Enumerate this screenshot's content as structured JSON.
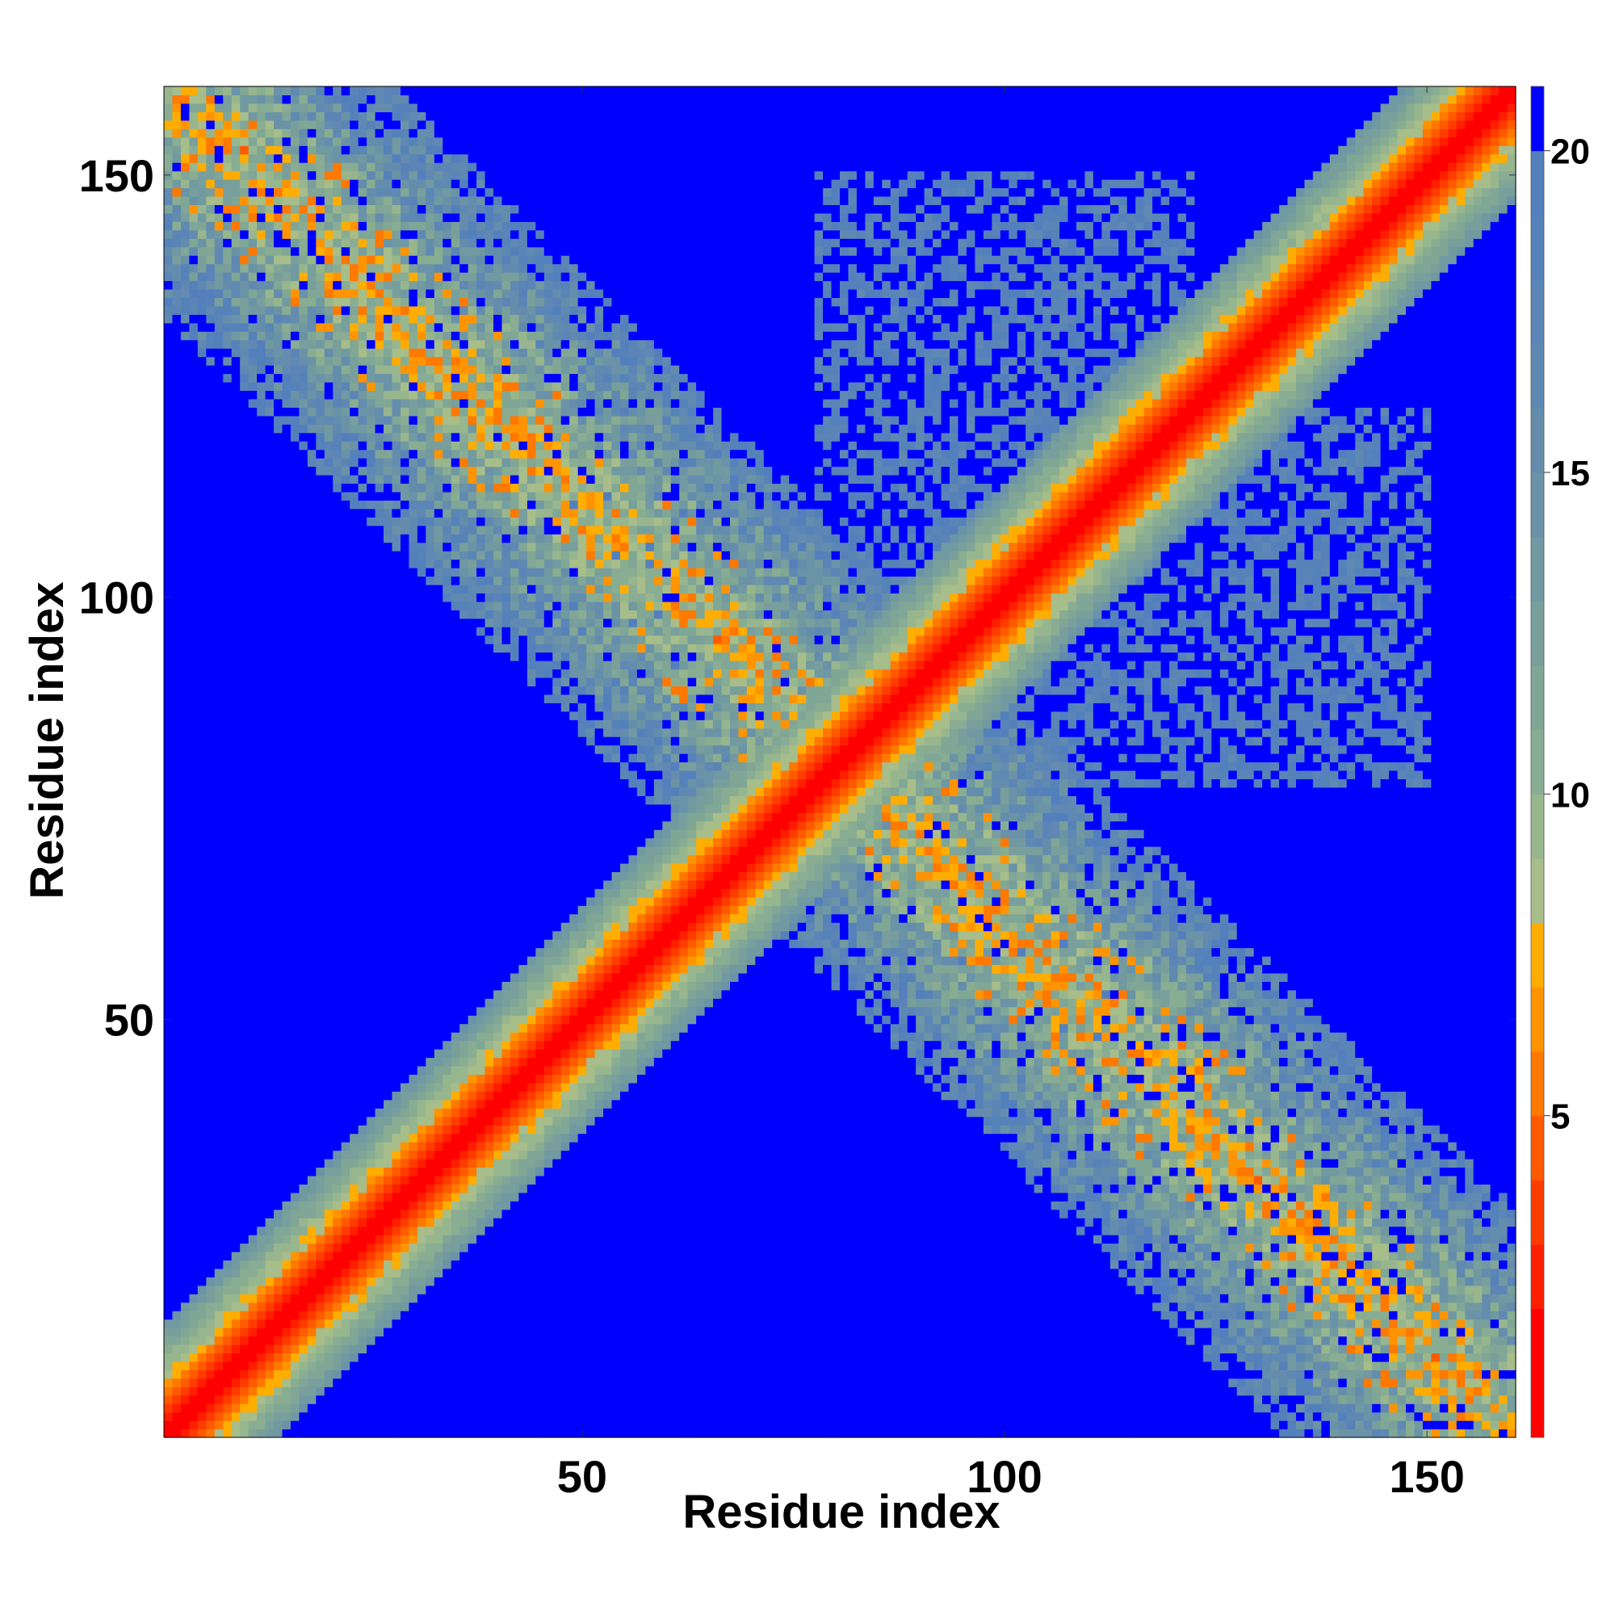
{
  "chart_data": {
    "type": "heatmap",
    "title": "",
    "xlabel": "Residue index",
    "ylabel": "Residue index",
    "xlim": [
      1,
      160
    ],
    "ylim": [
      1,
      160
    ],
    "x_ticks": [
      50,
      100,
      150
    ],
    "y_ticks": [
      50,
      100,
      150
    ],
    "x_tick_labels": [
      "50",
      "100",
      "150"
    ],
    "y_tick_labels": [
      "50",
      "100",
      "150"
    ],
    "n_residues": 160,
    "values_description": "pairwise residue distance, clipped at 21",
    "colorbar": {
      "range": [
        0,
        21
      ],
      "ticks": [
        5,
        10,
        15,
        20
      ],
      "tick_labels": [
        "5",
        "10",
        "15",
        "20"
      ],
      "levels": [
        {
          "max": 2,
          "color": "#ff0000"
        },
        {
          "max": 3,
          "color": "#ff1e00"
        },
        {
          "max": 4,
          "color": "#ff3c00"
        },
        {
          "max": 5,
          "color": "#ff5a00"
        },
        {
          "max": 6,
          "color": "#ff7800"
        },
        {
          "max": 7,
          "color": "#ff9400"
        },
        {
          "max": 8,
          "color": "#ffad00"
        },
        {
          "max": 9,
          "color": "#a7bd8a"
        },
        {
          "max": 10,
          "color": "#98b68e"
        },
        {
          "max": 11,
          "color": "#89ad92"
        },
        {
          "max": 12,
          "color": "#80a696"
        },
        {
          "max": 13,
          "color": "#789f9c"
        },
        {
          "max": 14,
          "color": "#7099a2"
        },
        {
          "max": 15,
          "color": "#6a93a8"
        },
        {
          "max": 16,
          "color": "#648dad"
        },
        {
          "max": 17,
          "color": "#5f89b2"
        },
        {
          "max": 18,
          "color": "#5a85b6"
        },
        {
          "max": 19,
          "color": "#5682ba"
        },
        {
          "max": 20,
          "color": "#5380bd"
        },
        {
          "max": 21,
          "color": "#0000ff"
        }
      ]
    },
    "features": {
      "diagonal_band": {
        "description": "strong contacts along main diagonal, width ~ +-12 residues"
      },
      "anti_diagonal_contacts": [
        {
          "x_range": [
            1,
            50
          ],
          "y_range": [
            90,
            158
          ],
          "strength": "medium"
        },
        {
          "x_range": [
            50,
            90
          ],
          "y_range": [
            40,
            90
          ],
          "strength": "medium"
        },
        {
          "x_range": [
            90,
            158
          ],
          "y_range": [
            1,
            50
          ],
          "strength": "medium"
        },
        {
          "x_range": [
            78,
            120
          ],
          "y_range": [
            80,
            148
          ],
          "strength": "weak"
        },
        {
          "x_range": [
            120,
            148
          ],
          "y_range": [
            78,
            110
          ],
          "strength": "weak"
        }
      ]
    }
  }
}
